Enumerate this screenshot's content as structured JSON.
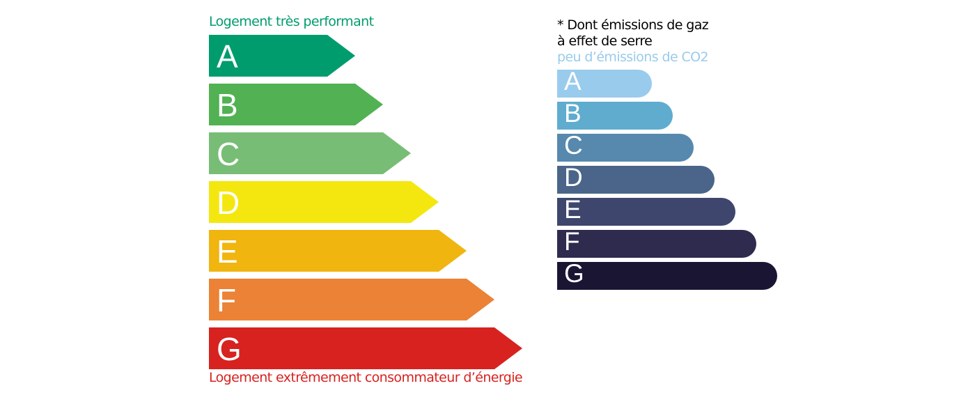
{
  "energy": {
    "top_label": "Logement très performant",
    "top_color": "#009c6d",
    "bottom_label": "Logement extrêmement consommateur d’énergie",
    "bottom_color": "#d7221f",
    "classes": [
      {
        "letter": "A",
        "color": "#009c6d"
      },
      {
        "letter": "B",
        "color": "#52b153"
      },
      {
        "letter": "C",
        "color": "#78bd76"
      },
      {
        "letter": "D",
        "color": "#f4e70f"
      },
      {
        "letter": "E",
        "color": "#f0b50f"
      },
      {
        "letter": "F",
        "color": "#eb8235"
      },
      {
        "letter": "G",
        "color": "#d7221f"
      }
    ]
  },
  "ges": {
    "title_line1": "* Dont émissions de gaz",
    "title_line2": "à effet de serre",
    "top_label": "peu d’émissions de CO2",
    "top_color": "#99cbec",
    "classes": [
      {
        "letter": "A",
        "color": "#99cbec"
      },
      {
        "letter": "B",
        "color": "#5faccf"
      },
      {
        "letter": "C",
        "color": "#5689ad"
      },
      {
        "letter": "D",
        "color": "#4a6589"
      },
      {
        "letter": "E",
        "color": "#3e466d"
      },
      {
        "letter": "F",
        "color": "#2f2b4f"
      },
      {
        "letter": "G",
        "color": "#1b1534"
      }
    ]
  }
}
